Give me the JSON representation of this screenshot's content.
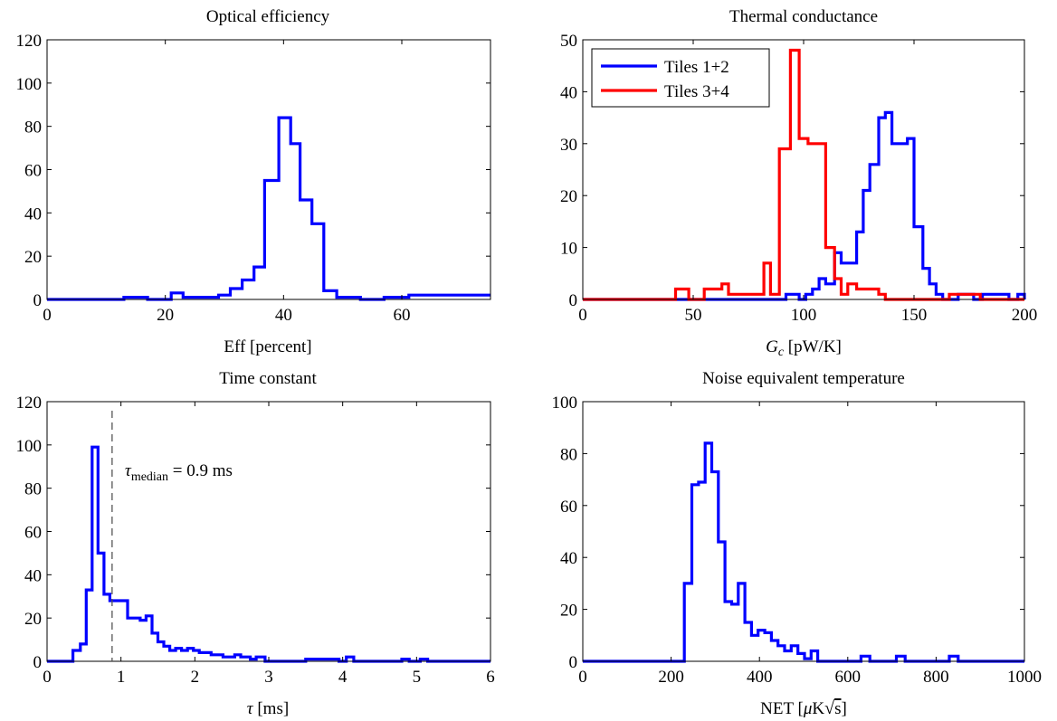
{
  "chart_data": [
    {
      "type": "histogram",
      "title": "Optical efficiency",
      "xlabel": "Eff [percent]",
      "ylabel": "",
      "xlim": [
        0,
        75
      ],
      "ylim": [
        0,
        120
      ],
      "xticks": [
        "0",
        "20",
        "40",
        "60"
      ],
      "xtick_values": [
        0,
        20,
        40,
        60
      ],
      "yticks": [
        "0",
        "20",
        "40",
        "60",
        "80",
        "100",
        "120"
      ],
      "ytick_values": [
        0,
        20,
        40,
        60,
        80,
        100,
        120
      ],
      "series": [
        {
          "color": "#0000ff",
          "x": [
            0,
            13,
            14,
            17,
            21,
            23,
            27,
            29,
            31,
            33,
            35,
            36.8,
            39.2,
            41.2,
            42.8,
            44.8,
            46.8,
            49,
            53,
            57,
            61.2
          ],
          "y": [
            0,
            1,
            1,
            0,
            3,
            1,
            1,
            2,
            5,
            9,
            15,
            55,
            84,
            72,
            46,
            35,
            4,
            1,
            0,
            1,
            2
          ]
        }
      ]
    },
    {
      "type": "histogram",
      "title": "Thermal conductance",
      "xlabel": "G_c [pW/K]",
      "ylabel": "",
      "xlim": [
        0,
        200
      ],
      "ylim": [
        0,
        50
      ],
      "xticks": [
        "0",
        "50",
        "100",
        "150",
        "200"
      ],
      "xtick_values": [
        0,
        50,
        100,
        150,
        200
      ],
      "yticks": [
        "0",
        "10",
        "20",
        "30",
        "40",
        "50"
      ],
      "ytick_values": [
        0,
        10,
        20,
        30,
        40,
        50
      ],
      "legend": {
        "location": "top-left",
        "entries": [
          "Tiles 1+2",
          "Tiles 3+4"
        ]
      },
      "series": [
        {
          "name": "Tiles 1+2",
          "color": "#0000ff",
          "x": [
            0,
            92,
            95,
            98,
            101,
            104,
            107,
            110,
            114,
            117,
            120,
            124,
            127,
            130,
            134,
            137,
            140,
            144,
            147,
            150,
            154,
            157,
            160,
            163,
            166,
            170,
            177,
            181,
            193,
            197,
            200
          ],
          "y": [
            0,
            1,
            1,
            0,
            1,
            2,
            4,
            3,
            9,
            7,
            7,
            13,
            21,
            26,
            35,
            36,
            30,
            30,
            31,
            14,
            6,
            3,
            1,
            0,
            0,
            1,
            0,
            1,
            0,
            1,
            0
          ]
        },
        {
          "name": "Tiles 3+4",
          "color": "#ff0000",
          "x": [
            0,
            42,
            48,
            55,
            59,
            63,
            66,
            69,
            82,
            85,
            89,
            94,
            98,
            102,
            107,
            110,
            114,
            117,
            120,
            124,
            127,
            130,
            134,
            137,
            141,
            147,
            166,
            174,
            180
          ],
          "y": [
            0,
            2,
            0,
            2,
            2,
            3,
            1,
            1,
            7,
            1,
            29,
            48,
            31,
            30,
            30,
            10,
            4,
            1,
            3,
            2,
            2,
            2,
            1,
            0,
            0,
            0,
            1,
            1,
            0
          ]
        }
      ]
    },
    {
      "type": "histogram",
      "title": "Time constant",
      "xlabel": "τ [ms]",
      "ylabel": "",
      "xlim": [
        0,
        6
      ],
      "ylim": [
        0,
        120
      ],
      "xticks": [
        "0",
        "1",
        "2",
        "3",
        "4",
        "5",
        "6"
      ],
      "xtick_values": [
        0,
        1,
        2,
        3,
        4,
        5,
        6
      ],
      "yticks": [
        "0",
        "20",
        "40",
        "60",
        "80",
        "100",
        "120"
      ],
      "ytick_values": [
        0,
        20,
        40,
        60,
        80,
        100,
        120
      ],
      "annotation": {
        "text": "τ_median = 0.9 ms",
        "vline_x": 0.88
      },
      "series": [
        {
          "color": "#0000ff",
          "x": [
            0,
            0.35,
            0.45,
            0.53,
            0.61,
            0.69,
            0.77,
            0.85,
            0.93,
            1.01,
            1.09,
            1.18,
            1.26,
            1.34,
            1.42,
            1.5,
            1.58,
            1.66,
            1.74,
            1.82,
            1.9,
            1.98,
            2.06,
            2.14,
            2.22,
            2.3,
            2.38,
            2.46,
            2.54,
            2.62,
            2.75,
            2.83,
            2.95,
            3.5,
            3.95,
            4.05,
            4.15,
            4.8,
            4.9,
            5.05,
            5.15
          ],
          "y": [
            0,
            5,
            8,
            33,
            99,
            50,
            31,
            28,
            28,
            28,
            20,
            20,
            19,
            21,
            13,
            9,
            7,
            5,
            6,
            5,
            6,
            5,
            4,
            4,
            3,
            3,
            2,
            2,
            3,
            2,
            1,
            2,
            0,
            1,
            0,
            2,
            0,
            1,
            0,
            1,
            0
          ]
        }
      ]
    },
    {
      "type": "histogram",
      "title": "Noise equivalent temperature",
      "xlabel": "NET [μK√s]",
      "ylabel": "",
      "xlim": [
        0,
        1000
      ],
      "ylim": [
        0,
        100
      ],
      "xticks": [
        "0",
        "200",
        "400",
        "600",
        "800",
        "1000"
      ],
      "xtick_values": [
        0,
        200,
        400,
        600,
        800,
        1000
      ],
      "yticks": [
        "0",
        "20",
        "40",
        "60",
        "80",
        "100"
      ],
      "ytick_values": [
        0,
        20,
        40,
        60,
        80,
        100
      ],
      "series": [
        {
          "color": "#0000ff",
          "x": [
            0,
            230,
            247,
            262,
            277,
            292,
            307,
            322,
            337,
            352,
            367,
            382,
            397,
            412,
            427,
            442,
            457,
            472,
            487,
            502,
            517,
            532,
            630,
            650,
            710,
            730,
            830,
            850
          ],
          "y": [
            0,
            30,
            68,
            69,
            84,
            73,
            46,
            23,
            22,
            30,
            15,
            10,
            12,
            11,
            8,
            6,
            4,
            6,
            3,
            1,
            4,
            0,
            2,
            0,
            2,
            0,
            2,
            0
          ]
        }
      ]
    }
  ]
}
